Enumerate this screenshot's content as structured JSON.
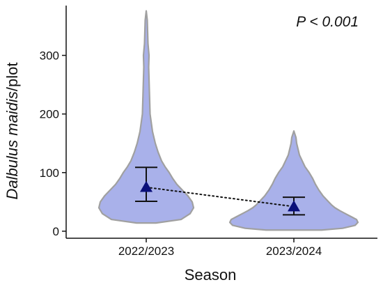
{
  "chart_data": {
    "type": "violin",
    "title": "",
    "xlabel": "Season",
    "ylabel_italic": "Dalbulus maidis",
    "ylabel_rest": "/plot",
    "annotation": "P < 0.001",
    "categories": [
      "2022/2023",
      "2023/2024"
    ],
    "y_ticks": [
      0,
      100,
      200,
      300
    ],
    "ylim": [
      -12,
      385
    ],
    "mean": [
      75,
      42
    ],
    "ci_lower": [
      51,
      28
    ],
    "ci_upper": [
      109,
      58
    ],
    "grid": false,
    "colors": {
      "violin_fill": "#a9b1ea",
      "violin_stroke": "#a0a0a0",
      "marker": "#0a0f7a",
      "error_bar": "#111111",
      "connector": "#111111"
    },
    "marker_icon": "triangle-up",
    "violin_profiles": [
      {
        "y": [
          14,
          20,
          30,
          40,
          50,
          60,
          70,
          80,
          90,
          100,
          110,
          120,
          135,
          150,
          170,
          200,
          240,
          280,
          300,
          320,
          340,
          360,
          376
        ],
        "halfw": [
          14,
          50,
          63,
          68,
          66,
          60,
          52,
          44,
          38,
          33,
          27,
          22,
          17,
          13,
          9,
          5.5,
          4.5,
          3.5,
          4,
          2.5,
          2,
          1.5,
          0
        ]
      },
      {
        "y": [
          2,
          5,
          10,
          15,
          20,
          25,
          30,
          35,
          40,
          45,
          50,
          55,
          60,
          70,
          80,
          90,
          100,
          110,
          120,
          130,
          140,
          150,
          160,
          171
        ],
        "halfw": [
          40,
          70,
          88,
          92,
          90,
          82,
          74,
          66,
          59,
          54,
          50,
          46,
          42,
          36,
          31,
          27,
          22,
          16,
          12,
          8,
          6,
          4,
          3,
          0
        ]
      }
    ]
  }
}
